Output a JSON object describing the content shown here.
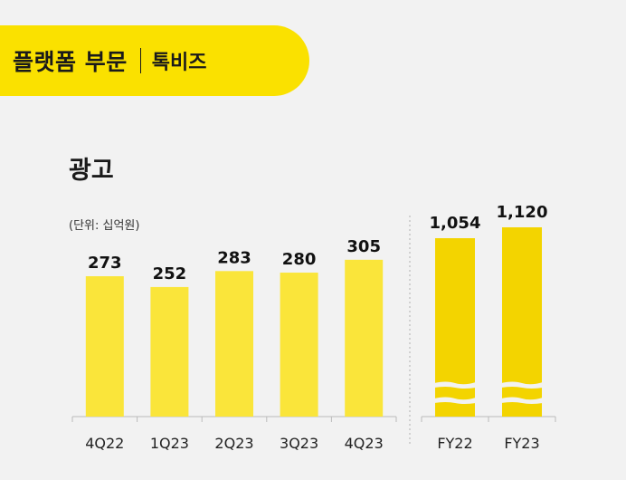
{
  "header": {
    "title": "플랫폼 부문",
    "subtitle": "톡비즈"
  },
  "section": {
    "title": "광고",
    "unit_note": "(단위: 십억원)"
  },
  "colors": {
    "bar_quarter": "#fae53a",
    "bar_annual": "#f3d400",
    "banner": "#fae100",
    "background": "#f2f2f2"
  },
  "chart_data": [
    {
      "type": "bar",
      "categories": [
        "4Q22",
        "1Q23",
        "2Q23",
        "3Q23",
        "4Q23"
      ],
      "values": [
        273,
        252,
        283,
        280,
        305
      ],
      "value_labels": [
        "273",
        "252",
        "283",
        "280",
        "305"
      ],
      "ylim": [
        0,
        400
      ],
      "grid": false,
      "legend": "none"
    },
    {
      "type": "bar",
      "categories": [
        "FY22",
        "FY23"
      ],
      "values": [
        1054,
        1120
      ],
      "value_labels": [
        "1,054",
        "1,120"
      ],
      "axis_break": true,
      "grid": false,
      "legend": "none"
    }
  ]
}
